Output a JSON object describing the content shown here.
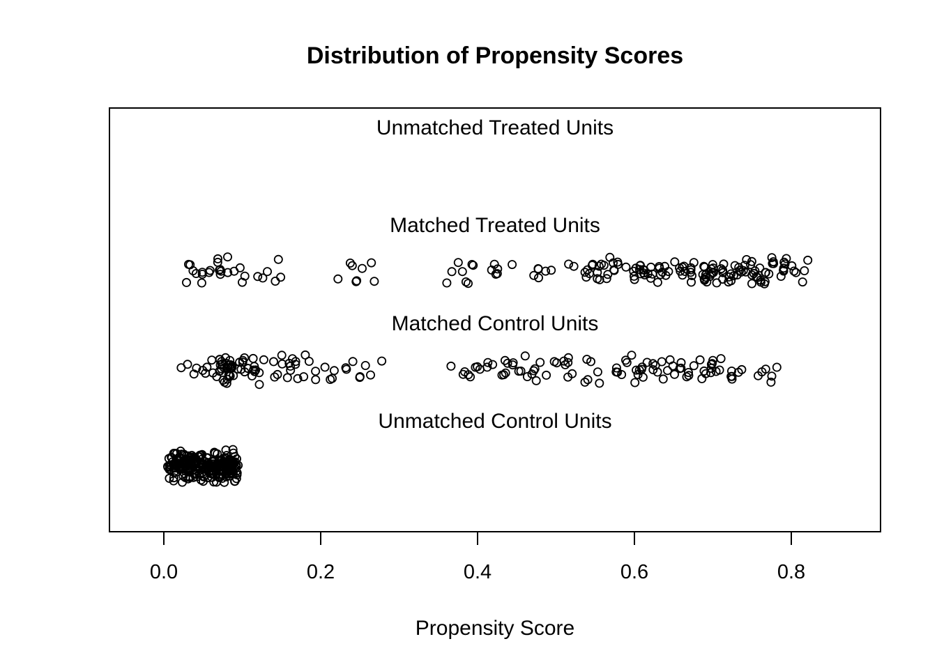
{
  "chart_data": {
    "type": "scatter",
    "variant": "jitter-strip-plot",
    "title": "Distribution of Propensity Scores",
    "xlabel": "Propensity Score",
    "ylabel": "",
    "xlim": [
      -0.07,
      0.915
    ],
    "x_ticks": [
      0.0,
      0.2,
      0.4,
      0.6,
      0.8
    ],
    "x_tick_labels": [
      "0.0",
      "0.2",
      "0.4",
      "0.6",
      "0.8"
    ],
    "grid": false,
    "legend": "none",
    "marker": {
      "shape": "open-circle",
      "color": "#000000",
      "fill": "none"
    },
    "border_color": "#000000",
    "background_color": "#ffffff",
    "groups": [
      {
        "label": "Unmatched Treated Units",
        "count": 0,
        "clusters": []
      },
      {
        "label": "Matched Treated Units",
        "count": 185,
        "x_range": [
          0.022,
          0.845
        ],
        "clusters": [
          {
            "x0": 0.022,
            "x1": 0.06,
            "n": 10
          },
          {
            "x0": 0.06,
            "x1": 0.16,
            "n": 18
          },
          {
            "x0": 0.19,
            "x1": 0.3,
            "n": 8
          },
          {
            "x0": 0.355,
            "x1": 0.405,
            "n": 8
          },
          {
            "x0": 0.41,
            "x1": 0.46,
            "n": 6
          },
          {
            "x0": 0.47,
            "x1": 0.53,
            "n": 8
          },
          {
            "x0": 0.535,
            "x1": 0.65,
            "n": 45
          },
          {
            "x0": 0.65,
            "x1": 0.795,
            "n": 75
          },
          {
            "x0": 0.79,
            "x1": 0.84,
            "n": 7
          }
        ]
      },
      {
        "label": "Matched Control Units",
        "count": 185,
        "x_range": [
          0.022,
          0.785
        ],
        "clusters": [
          {
            "x0": 0.022,
            "x1": 0.06,
            "n": 7
          },
          {
            "x0": 0.06,
            "x1": 0.085,
            "n": 10
          },
          {
            "x0": 0.07,
            "x1": 0.13,
            "n": 40
          },
          {
            "x0": 0.13,
            "x1": 0.17,
            "n": 12
          },
          {
            "x0": 0.17,
            "x1": 0.29,
            "n": 18
          },
          {
            "x0": 0.355,
            "x1": 0.44,
            "n": 16
          },
          {
            "x0": 0.44,
            "x1": 0.51,
            "n": 14
          },
          {
            "x0": 0.51,
            "x1": 0.565,
            "n": 12
          },
          {
            "x0": 0.575,
            "x1": 0.72,
            "n": 44
          },
          {
            "x0": 0.72,
            "x1": 0.785,
            "n": 12
          }
        ]
      },
      {
        "label": "Unmatched Control Units",
        "count": 244,
        "x_range": [
          0.002,
          0.096
        ],
        "clusters": [
          {
            "x0": 0.003,
            "x1": 0.095,
            "n": 244
          }
        ]
      }
    ]
  }
}
